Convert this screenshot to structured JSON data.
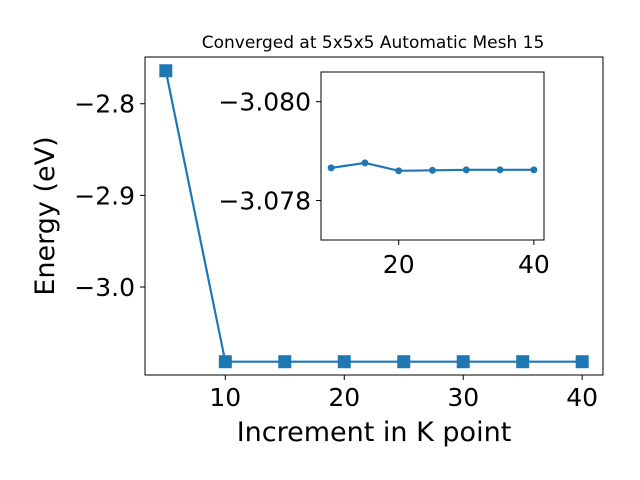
{
  "chart_data": [
    {
      "type": "line",
      "title": "Converged at 5x5x5 Automatic Mesh 15",
      "xlabel": "Increment in K point",
      "ylabel": "Energy (eV)",
      "x": [
        5,
        10,
        15,
        20,
        25,
        30,
        35,
        40
      ],
      "series": [
        {
          "values": [
            -2.764,
            -3.0815,
            -3.0815,
            -3.0815,
            -3.0815,
            -3.0815,
            -3.0815,
            -3.0815
          ]
        }
      ],
      "marker": "square",
      "color": "#1f77b4",
      "xlim": [
        3.25,
        41.75
      ],
      "ylim": [
        -3.096,
        -2.749
      ],
      "xticks": [
        10,
        20,
        30,
        40
      ],
      "yticks": [
        -2.8,
        -2.9,
        -3.0
      ],
      "ytick_labels": [
        "−2.8",
        "−2.9",
        "−3.0"
      ],
      "grid": false
    },
    {
      "type": "line",
      "inset": true,
      "x": [
        10,
        15,
        20,
        25,
        30,
        35,
        40
      ],
      "series": [
        {
          "values": [
            -3.07866,
            -3.07876,
            -3.0786,
            -3.07861,
            -3.07862,
            -3.07862,
            -3.07862
          ]
        }
      ],
      "marker": "circle",
      "color": "#1f77b4",
      "xlim": [
        8.5,
        41.5
      ],
      "ylim": [
        -3.0772,
        -3.0806
      ],
      "yaxis_inverted": true,
      "xticks": [
        20,
        40
      ],
      "yticks": [
        -3.08,
        -3.078
      ],
      "ytick_labels": [
        "−3.080",
        "−3.078"
      ],
      "grid": false
    }
  ]
}
